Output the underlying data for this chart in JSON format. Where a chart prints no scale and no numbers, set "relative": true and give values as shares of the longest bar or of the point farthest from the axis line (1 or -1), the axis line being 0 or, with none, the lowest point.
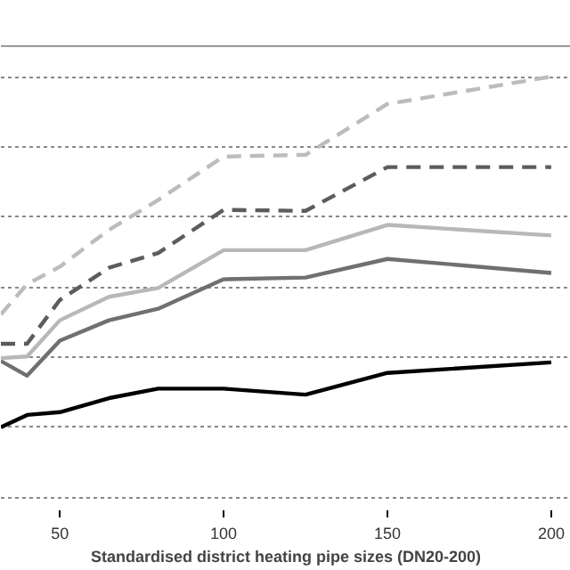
{
  "chart_data": {
    "type": "line",
    "relative": true,
    "xlabel": "Standardised district heating pipe sizes (DN20-200)",
    "x": [
      32,
      40,
      50,
      65,
      80,
      100,
      125,
      150,
      200
    ],
    "xlim": [
      32,
      206
    ],
    "xticks": [
      50,
      100,
      150,
      200
    ],
    "grid": "y",
    "series": [
      {
        "color": "#000000",
        "line_style": "solid",
        "values": [
          0,
          0.035,
          0.043,
          0.083,
          0.11,
          0.11,
          0.093,
          0.155,
          0.185
        ]
      },
      {
        "color": "#707070",
        "line_style": "solid",
        "values": [
          0.189,
          0.147,
          0.247,
          0.305,
          0.338,
          0.422,
          0.427,
          0.48,
          0.44
        ]
      },
      {
        "color": "#b8b8b8",
        "line_style": "solid",
        "values": [
          0.197,
          0.202,
          0.305,
          0.372,
          0.397,
          0.505,
          0.505,
          0.577,
          0.547
        ]
      },
      {
        "color": "#5c5c5c",
        "line_style": "dashed",
        "values": [
          0.238,
          0.238,
          0.363,
          0.455,
          0.497,
          0.62,
          0.617,
          0.742,
          0.742
        ]
      },
      {
        "color": "#bcbcbc",
        "line_style": "dashed",
        "values": [
          0.322,
          0.408,
          0.458,
          0.563,
          0.648,
          0.772,
          0.777,
          0.922,
          1
        ]
      }
    ]
  }
}
